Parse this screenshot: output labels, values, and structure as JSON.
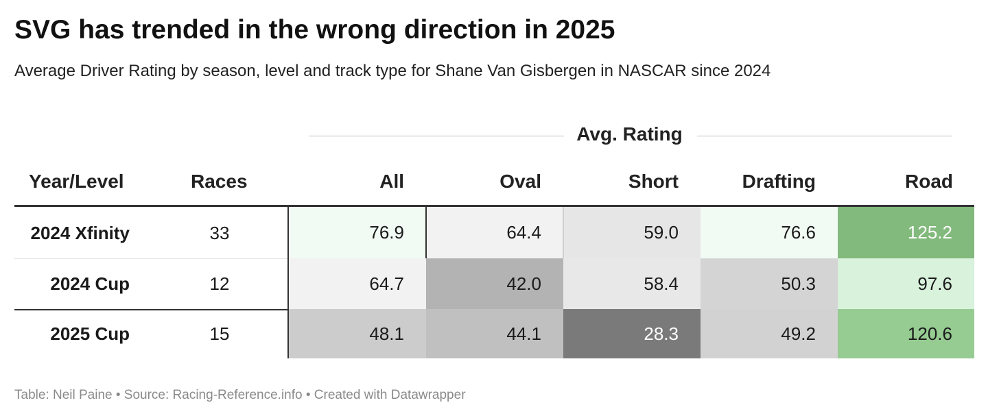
{
  "header": {
    "title": "SVG has trended in the wrong direction in 2025",
    "subtitle": "Average Driver Rating by season, level and track type for Shane Van Gisbergen in NASCAR since 2024"
  },
  "table": {
    "spanner_label": "Avg. Rating",
    "columns": [
      "Year/Level",
      "Races",
      "All",
      "Oval",
      "Short",
      "Drafting",
      "Road"
    ]
  },
  "chart_data": {
    "type": "table",
    "title": "SVG has trended in the wrong direction in 2025",
    "subtitle": "Average Driver Rating by season, level and track type for Shane Van Gisbergen in NASCAR since 2024",
    "spanner": "Avg. Rating",
    "columns": [
      "Year/Level",
      "Races",
      "All",
      "Oval",
      "Short",
      "Drafting",
      "Road"
    ],
    "rows": [
      {
        "label": "2024 Xfinity",
        "races": "33",
        "values": [
          "76.9",
          "64.4",
          "59.0",
          "76.6",
          "125.2"
        ]
      },
      {
        "label": "2024 Cup",
        "races": "12",
        "values": [
          "64.7",
          "42.0",
          "58.4",
          "50.3",
          "97.6"
        ]
      },
      {
        "label": "2025 Cup",
        "races": "15",
        "values": [
          "48.1",
          "44.1",
          "28.3",
          "49.2",
          "120.6"
        ]
      }
    ],
    "cell_colors": [
      [
        "#f2faf4",
        "#f2f2f2",
        "#e6e6e6",
        "#f2faf4",
        "#82b97c"
      ],
      [
        "#f2f2f2",
        "#b3b3b3",
        "#e8e8e8",
        "#d4d4d4",
        "#d8f2dc"
      ],
      [
        "#cccccc",
        "#c0c0c0",
        "#7a7a7a",
        "#d2d2d2",
        "#96cb92"
      ]
    ],
    "cell_text_colors": [
      [
        "#1a1a1a",
        "#1a1a1a",
        "#1a1a1a",
        "#1a1a1a",
        "#ffffff"
      ],
      [
        "#1a1a1a",
        "#1a1a1a",
        "#1a1a1a",
        "#1a1a1a",
        "#1a1a1a"
      ],
      [
        "#1a1a1a",
        "#1a1a1a",
        "#ffffff",
        "#1a1a1a",
        "#1a1a1a"
      ]
    ]
  },
  "footer": {
    "text": "Table: Neil Paine • Source: Racing-Reference.info • Created with Datawrapper"
  }
}
